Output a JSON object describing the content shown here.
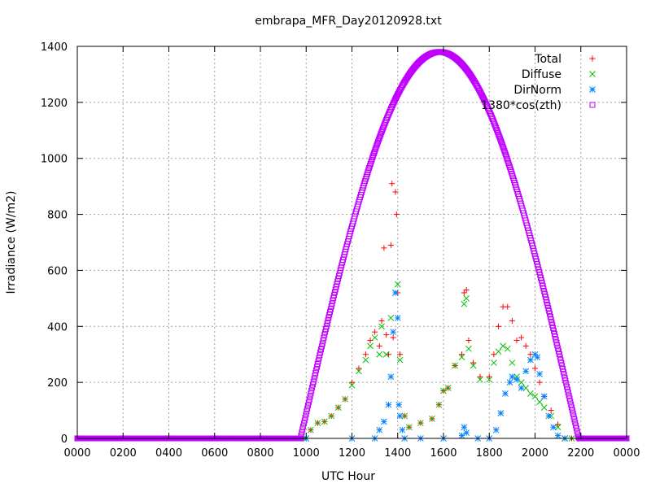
{
  "chart_data": {
    "type": "scatter",
    "title": "embrapa_MFR_Day20120928.txt",
    "xlabel": "UTC Hour",
    "ylabel": "Irradiance (W/m2)",
    "xlim": [
      0,
      24
    ],
    "ylim": [
      0,
      1400
    ],
    "x_ticks": [
      0,
      2,
      4,
      6,
      8,
      10,
      12,
      14,
      16,
      18,
      20,
      22,
      24
    ],
    "x_tick_labels": [
      "0000",
      "0200",
      "0400",
      "0600",
      "0800",
      "1000",
      "1200",
      "1400",
      "1600",
      "1800",
      "2000",
      "2200",
      "0000"
    ],
    "y_ticks": [
      0,
      200,
      400,
      600,
      800,
      1000,
      1200,
      1400
    ],
    "y_tick_labels": [
      "0",
      "200",
      "400",
      "600",
      "800",
      "1000",
      "1200",
      "1400"
    ],
    "grid": true,
    "legend_position": "top-right",
    "series": [
      {
        "name": "Total",
        "marker": "plus",
        "color": "#ff0000",
        "points": [
          [
            9.9,
            0
          ],
          [
            10.2,
            30
          ],
          [
            10.5,
            55
          ],
          [
            10.8,
            60
          ],
          [
            11.1,
            80
          ],
          [
            11.4,
            110
          ],
          [
            11.7,
            140
          ],
          [
            12.0,
            200
          ],
          [
            12.3,
            250
          ],
          [
            12.6,
            300
          ],
          [
            12.8,
            350
          ],
          [
            13.0,
            380
          ],
          [
            13.2,
            330
          ],
          [
            13.3,
            420
          ],
          [
            13.4,
            680
          ],
          [
            13.5,
            370
          ],
          [
            13.6,
            300
          ],
          [
            13.7,
            690
          ],
          [
            13.75,
            910
          ],
          [
            13.8,
            360
          ],
          [
            13.9,
            880
          ],
          [
            13.95,
            800
          ],
          [
            14.0,
            520
          ],
          [
            14.1,
            300
          ],
          [
            14.3,
            80
          ],
          [
            14.5,
            40
          ],
          [
            15.0,
            55
          ],
          [
            15.5,
            70
          ],
          [
            15.8,
            120
          ],
          [
            16.0,
            170
          ],
          [
            16.2,
            180
          ],
          [
            16.5,
            260
          ],
          [
            16.8,
            300
          ],
          [
            16.9,
            520
          ],
          [
            17.0,
            530
          ],
          [
            17.1,
            350
          ],
          [
            17.3,
            270
          ],
          [
            17.6,
            220
          ],
          [
            18.0,
            220
          ],
          [
            18.2,
            300
          ],
          [
            18.4,
            400
          ],
          [
            18.6,
            470
          ],
          [
            18.8,
            470
          ],
          [
            19.0,
            420
          ],
          [
            19.2,
            350
          ],
          [
            19.4,
            360
          ],
          [
            19.6,
            330
          ],
          [
            19.8,
            300
          ],
          [
            20.0,
            250
          ],
          [
            20.2,
            200
          ],
          [
            20.4,
            150
          ],
          [
            20.7,
            100
          ],
          [
            21.0,
            50
          ],
          [
            21.3,
            0
          ],
          [
            21.6,
            0
          ],
          [
            22.0,
            0
          ]
        ]
      },
      {
        "name": "Diffuse",
        "marker": "cross",
        "color": "#00c000",
        "points": [
          [
            9.9,
            0
          ],
          [
            10.2,
            30
          ],
          [
            10.5,
            55
          ],
          [
            10.8,
            60
          ],
          [
            11.1,
            80
          ],
          [
            11.4,
            110
          ],
          [
            11.7,
            140
          ],
          [
            12.0,
            190
          ],
          [
            12.3,
            240
          ],
          [
            12.6,
            280
          ],
          [
            12.8,
            330
          ],
          [
            13.0,
            360
          ],
          [
            13.2,
            300
          ],
          [
            13.3,
            400
          ],
          [
            13.5,
            300
          ],
          [
            13.7,
            430
          ],
          [
            13.9,
            520
          ],
          [
            14.0,
            550
          ],
          [
            14.1,
            280
          ],
          [
            14.3,
            80
          ],
          [
            14.5,
            40
          ],
          [
            15.0,
            55
          ],
          [
            15.5,
            70
          ],
          [
            15.8,
            120
          ],
          [
            16.0,
            170
          ],
          [
            16.2,
            180
          ],
          [
            16.5,
            260
          ],
          [
            16.8,
            290
          ],
          [
            16.9,
            480
          ],
          [
            17.0,
            500
          ],
          [
            17.1,
            320
          ],
          [
            17.3,
            260
          ],
          [
            17.6,
            210
          ],
          [
            18.0,
            210
          ],
          [
            18.2,
            270
          ],
          [
            18.4,
            310
          ],
          [
            18.6,
            330
          ],
          [
            18.8,
            320
          ],
          [
            19.0,
            270
          ],
          [
            19.2,
            220
          ],
          [
            19.4,
            200
          ],
          [
            19.6,
            180
          ],
          [
            19.8,
            160
          ],
          [
            20.0,
            150
          ],
          [
            20.2,
            130
          ],
          [
            20.4,
            110
          ],
          [
            20.7,
            80
          ],
          [
            21.0,
            40
          ],
          [
            21.3,
            0
          ],
          [
            21.6,
            0
          ],
          [
            22.0,
            0
          ]
        ]
      },
      {
        "name": "DirNorm",
        "marker": "star",
        "color": "#0080ff",
        "points": [
          [
            0,
            0
          ],
          [
            2,
            0
          ],
          [
            4,
            0
          ],
          [
            6,
            0
          ],
          [
            8,
            0
          ],
          [
            10,
            0
          ],
          [
            12,
            0
          ],
          [
            13.0,
            0
          ],
          [
            13.2,
            30
          ],
          [
            13.4,
            60
          ],
          [
            13.6,
            120
          ],
          [
            13.7,
            220
          ],
          [
            13.8,
            380
          ],
          [
            13.9,
            520
          ],
          [
            14.0,
            430
          ],
          [
            14.05,
            120
          ],
          [
            14.1,
            80
          ],
          [
            14.2,
            30
          ],
          [
            14.3,
            0
          ],
          [
            15,
            0
          ],
          [
            16,
            0
          ],
          [
            16.8,
            10
          ],
          [
            16.9,
            40
          ],
          [
            17.0,
            20
          ],
          [
            17.5,
            0
          ],
          [
            18.0,
            0
          ],
          [
            18.3,
            30
          ],
          [
            18.5,
            90
          ],
          [
            18.7,
            160
          ],
          [
            18.9,
            200
          ],
          [
            19.0,
            220
          ],
          [
            19.2,
            210
          ],
          [
            19.4,
            180
          ],
          [
            19.6,
            240
          ],
          [
            19.8,
            280
          ],
          [
            20.0,
            300
          ],
          [
            20.1,
            290
          ],
          [
            20.2,
            230
          ],
          [
            20.4,
            150
          ],
          [
            20.6,
            80
          ],
          [
            20.8,
            40
          ],
          [
            21.0,
            10
          ],
          [
            21.3,
            0
          ],
          [
            22,
            0
          ],
          [
            24,
            0
          ]
        ]
      },
      {
        "name": "1380*cos(zth)",
        "marker": "square",
        "color": "#c000ff",
        "function": {
          "peak": 1380,
          "sunrise": 9.75,
          "noon": 15.83,
          "sunset": 21.92
        }
      }
    ]
  }
}
